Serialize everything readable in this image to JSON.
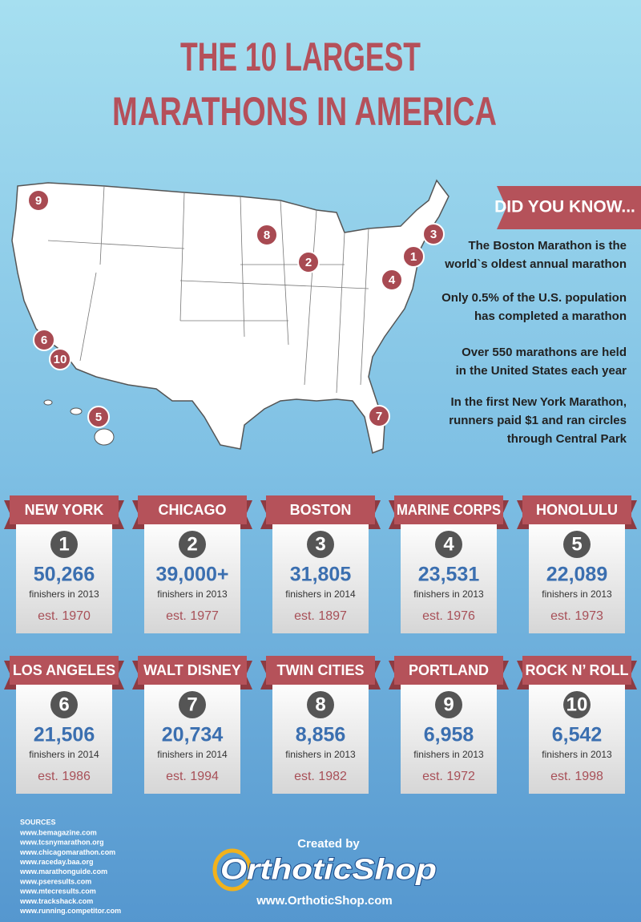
{
  "title": {
    "lines": [
      "THE 10 LARGEST",
      "MARATHONS IN AMERICA"
    ]
  },
  "map_markers": [
    "9",
    "8",
    "2",
    "3",
    "1",
    "4",
    "6",
    "10",
    "5",
    "7"
  ],
  "did_you_know": {
    "heading": "DID YOU KNOW...",
    "facts": [
      [
        "The Boston Marathon is the",
        "world`s oldest annual marathon"
      ],
      [
        "Only 0.5% of the U.S. population",
        "has completed a marathon"
      ],
      [
        "Over 550 marathons are held",
        "in the United States each year"
      ],
      [
        "In the first New York Marathon,",
        "runners paid $1 and ran circles",
        "through Central Park"
      ]
    ]
  },
  "marathons": [
    {
      "name": "NEW YORK",
      "rank": 1,
      "finishers": "50,266",
      "finishers_label": "finishers in 2013",
      "established": "est. 1970"
    },
    {
      "name": "CHICAGO",
      "rank": 2,
      "finishers": "39,000+",
      "finishers_label": "finishers in 2013",
      "established": "est. 1977"
    },
    {
      "name": "BOSTON",
      "rank": 3,
      "finishers": "31,805",
      "finishers_label": "finishers in 2014",
      "established": "est. 1897"
    },
    {
      "name": "MARINE CORPS",
      "rank": 4,
      "finishers": "23,531",
      "finishers_label": "finishers in 2013",
      "established": "est. 1976"
    },
    {
      "name": "HONOLULU",
      "rank": 5,
      "finishers": "22,089",
      "finishers_label": "finishers in 2013",
      "established": "est. 1973"
    },
    {
      "name": "LOS ANGELES",
      "rank": 6,
      "finishers": "21,506",
      "finishers_label": "finishers in 2014",
      "established": "est. 1986"
    },
    {
      "name": "WALT DISNEY",
      "rank": 7,
      "finishers": "20,734",
      "finishers_label": "finishers in 2014",
      "established": "est. 1994"
    },
    {
      "name": "TWIN CITIES",
      "rank": 8,
      "finishers": "8,856",
      "finishers_label": "finishers in 2013",
      "established": "est. 1982"
    },
    {
      "name": "PORTLAND",
      "rank": 9,
      "finishers": "6,958",
      "finishers_label": "finishers in 2013",
      "established": "est. 1972"
    },
    {
      "name": "ROCK N’ ROLL",
      "rank": 10,
      "finishers": "6,542",
      "finishers_label": "finishers in 2013",
      "established": "est. 1998"
    }
  ],
  "sources": {
    "heading": "SOURCES",
    "links": [
      "www.bemagazine.com",
      "www.tcsnymarathon.org",
      "www.chicagomarathon.com",
      "www.raceday.baa.org",
      "www.marathonguide.com",
      "www.pseresults.com",
      "www.mtecresults.com",
      "www.trackshack.com",
      "www.running.competitor.com"
    ]
  },
  "footer": {
    "created_by": "Created by",
    "logo": "OrthoticShop",
    "url": "www.OrthoticShop.com"
  }
}
